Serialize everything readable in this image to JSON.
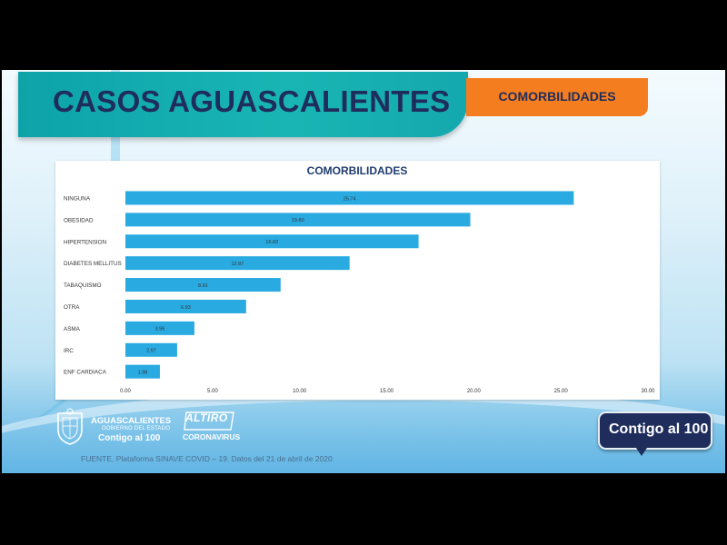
{
  "header": {
    "title": "CASOS AGUASCALIENTES",
    "tag": "COMORBILIDADES"
  },
  "colors": {
    "bar": "#29aae1",
    "title_band": "#14a9ae",
    "title_text": "#1f2d5c",
    "tag_bg": "#f47d20",
    "badge_bg": "#1f2d5c"
  },
  "chart_data": {
    "type": "bar",
    "orientation": "horizontal",
    "title": "COMORBILIDADES",
    "categories": [
      "NINGUNA",
      "OBESIDAD",
      "HIPERTENSION",
      "DIABETES MELLITUS",
      "TABAQUISMO",
      "OTRA",
      "ASMA",
      "IRC",
      "ENF CARDIACA"
    ],
    "values": [
      25.74,
      19.8,
      16.83,
      12.87,
      8.91,
      6.93,
      3.96,
      2.97,
      1.98
    ],
    "value_labels": [
      "25.74",
      "19.80",
      "16.83",
      "12.87",
      "8.91",
      "6.93",
      "3.96",
      "2.97",
      "1.98"
    ],
    "xlim": [
      0,
      30
    ],
    "x_ticks": [
      "0.00",
      "5.00",
      "10.00",
      "15.00",
      "20.00",
      "25.00",
      "30.00"
    ],
    "grid": false,
    "legend": "none"
  },
  "footer": {
    "gov_name": "AGUASCALIENTES",
    "gov_sub": "GOBIERNO DEL ESTADO",
    "gov_contigo": "Contigo al 100",
    "altiro_top": "ALTIRO",
    "altiro_bottom": "CORONAVIRUS",
    "source": "FUENTE. Plataforma SINAVE COVID – 19. Datos del 21 de abril de 2020",
    "badge": "Contigo al 100"
  },
  "icons": {
    "seal": "state-seal-icon"
  }
}
